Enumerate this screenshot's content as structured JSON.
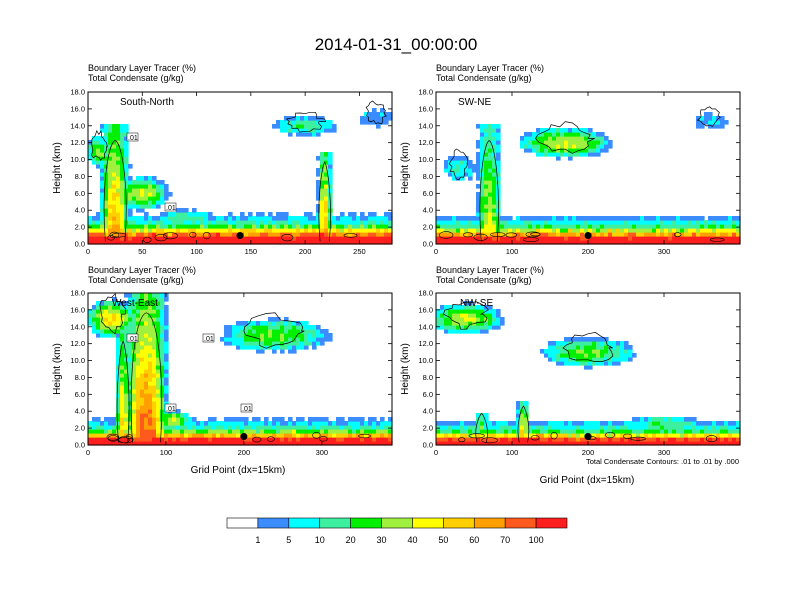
{
  "figure": {
    "title": "2014-01-31_00:00:00",
    "contour_note": "Total Condensate Contours: .01 to .01 by .000"
  },
  "colors": {
    "levels": [
      "#ffffff",
      "#3a8cff",
      "#00ffff",
      "#3cf0a0",
      "#00f000",
      "#a0f040",
      "#ffff00",
      "#ffd000",
      "#ffa000",
      "#ff5a1e",
      "#ff1e1e"
    ],
    "contour": "#000000",
    "marker": "#000000"
  },
  "colorbar": {
    "labels": [
      "1",
      "5",
      "10",
      "20",
      "30",
      "40",
      "50",
      "60",
      "70",
      "100"
    ]
  },
  "chart_data": [
    {
      "type": "heatmap",
      "panel": "South-North",
      "header1": "Boundary Layer Tracer    (%)",
      "header2": "Total Condensate    (g/kg)",
      "xlabel": "",
      "ylabel": "Height (km)",
      "xlim": [
        0,
        280
      ],
      "ylim": [
        0,
        18
      ],
      "xticks": [
        "0",
        "50",
        "100",
        "150",
        "200",
        "250"
      ],
      "yticks": [
        "0.0",
        "2.0",
        "4.0",
        "6.0",
        "8.0",
        "10.0",
        "12.0",
        "14.0",
        "16.0",
        "18.0"
      ],
      "marker": {
        "x": 140,
        "y": 1.0
      },
      "contour_labels": [
        ".01",
        ".01"
      ],
      "features": [
        {
          "kind": "boundary_layer",
          "top_km": 2.2
        },
        {
          "kind": "plume",
          "x": 25,
          "w": 30,
          "top_km": 14,
          "peak": 9
        },
        {
          "kind": "plume",
          "x": 218,
          "w": 14,
          "top_km": 11,
          "peak": 9
        },
        {
          "kind": "blob",
          "x": 50,
          "h_km": 6,
          "rx": 28,
          "rz_km": 2.2,
          "peak": 6
        },
        {
          "kind": "blob",
          "x": 200,
          "h_km": 14,
          "rx": 35,
          "rz_km": 1.3,
          "peak": 4
        },
        {
          "kind": "blob",
          "x": 265,
          "h_km": 15,
          "rx": 20,
          "rz_km": 1.5,
          "peak": 2
        },
        {
          "kind": "blob",
          "x": 10,
          "h_km": 11,
          "rx": 14,
          "rz_km": 2.0,
          "peak": 5
        },
        {
          "kind": "blob",
          "x": 90,
          "h_km": 3.2,
          "rx": 30,
          "rz_km": 1.0,
          "peak": 4
        }
      ]
    },
    {
      "type": "heatmap",
      "panel": "SW-NE",
      "header1": "Boundary Layer Tracer    (%)",
      "header2": "Total Condensate    (g/kg)",
      "xlabel": "",
      "ylabel": "Height (km)",
      "xlim": [
        0,
        400
      ],
      "ylim": [
        0,
        18
      ],
      "xticks": [
        "0",
        "100",
        "200",
        "300"
      ],
      "yticks": [
        "0.0",
        "2.0",
        "4.0",
        "6.0",
        "8.0",
        "10.0",
        "12.0",
        "14.0",
        "16.0",
        "18.0"
      ],
      "marker": {
        "x": 200,
        "y": 1.0
      },
      "contour_labels": [],
      "features": [
        {
          "kind": "boundary_layer",
          "top_km": 2.0
        },
        {
          "kind": "plume",
          "x": 70,
          "w": 35,
          "top_km": 14,
          "peak": 7
        },
        {
          "kind": "blob",
          "x": 170,
          "h_km": 12,
          "rx": 70,
          "rz_km": 2.0,
          "peak": 6
        },
        {
          "kind": "blob",
          "x": 360,
          "h_km": 14.5,
          "rx": 30,
          "rz_km": 1.3,
          "peak": 2
        },
        {
          "kind": "blob",
          "x": 30,
          "h_km": 9,
          "rx": 25,
          "rz_km": 2.0,
          "peak": 3
        }
      ]
    },
    {
      "type": "heatmap",
      "panel": "West-East",
      "header1": "Boundary Layer Tracer    (%)",
      "header2": "Total Condensate    (g/kg)",
      "xlabel": "Grid Point (dx=15km)",
      "ylabel": "Height (km)",
      "xlim": [
        0,
        390
      ],
      "ylim": [
        0,
        18
      ],
      "xticks": [
        "0",
        "100",
        "200",
        "300"
      ],
      "yticks": [
        "0.0",
        "2.0",
        "4.0",
        "6.0",
        "8.0",
        "10.0",
        "12.0",
        "14.0",
        "16.0",
        "18.0"
      ],
      "marker": {
        "x": 200,
        "y": 1.0
      },
      "contour_labels": [
        ".01",
        ".01",
        ".01",
        ".01"
      ],
      "features": [
        {
          "kind": "boundary_layer",
          "top_km": 1.8
        },
        {
          "kind": "plume",
          "x": 75,
          "w": 60,
          "top_km": 18,
          "peak": 10
        },
        {
          "kind": "plume",
          "x": 45,
          "w": 20,
          "top_km": 14,
          "peak": 8
        },
        {
          "kind": "blob",
          "x": 30,
          "h_km": 15,
          "rx": 35,
          "rz_km": 2.5,
          "peak": 7
        },
        {
          "kind": "blob",
          "x": 240,
          "h_km": 13,
          "rx": 80,
          "rz_km": 2.2,
          "peak": 5
        },
        {
          "kind": "blob",
          "x": 110,
          "h_km": 3,
          "rx": 25,
          "rz_km": 1.2,
          "peak": 6
        }
      ]
    },
    {
      "type": "heatmap",
      "panel": "NW-SE",
      "header1": "Boundary Layer Tracer    (%)",
      "header2": "Total Condensate    (g/kg)",
      "xlabel": "Grid Point (dx=15km)",
      "ylabel": "Height (km)",
      "xlim": [
        0,
        400
      ],
      "ylim": [
        0,
        18
      ],
      "xticks": [
        "0",
        "100",
        "200",
        "300"
      ],
      "yticks": [
        "0.0",
        "2.0",
        "4.0",
        "6.0",
        "8.0",
        "10.0",
        "12.0",
        "14.0",
        "16.0",
        "18.0"
      ],
      "marker": {
        "x": 200,
        "y": 1.0
      },
      "contour_labels": [],
      "features": [
        {
          "kind": "boundary_layer",
          "top_km": 1.6
        },
        {
          "kind": "plume",
          "x": 115,
          "w": 18,
          "top_km": 5,
          "peak": 9
        },
        {
          "kind": "plume",
          "x": 60,
          "w": 20,
          "top_km": 4,
          "peak": 7
        },
        {
          "kind": "blob",
          "x": 40,
          "h_km": 15,
          "rx": 55,
          "rz_km": 2.0,
          "peak": 6
        },
        {
          "kind": "blob",
          "x": 200,
          "h_km": 11,
          "rx": 70,
          "rz_km": 2.0,
          "peak": 5
        },
        {
          "kind": "blob",
          "x": 300,
          "h_km": 2.5,
          "rx": 60,
          "rz_km": 1.2,
          "peak": 4
        }
      ]
    }
  ]
}
